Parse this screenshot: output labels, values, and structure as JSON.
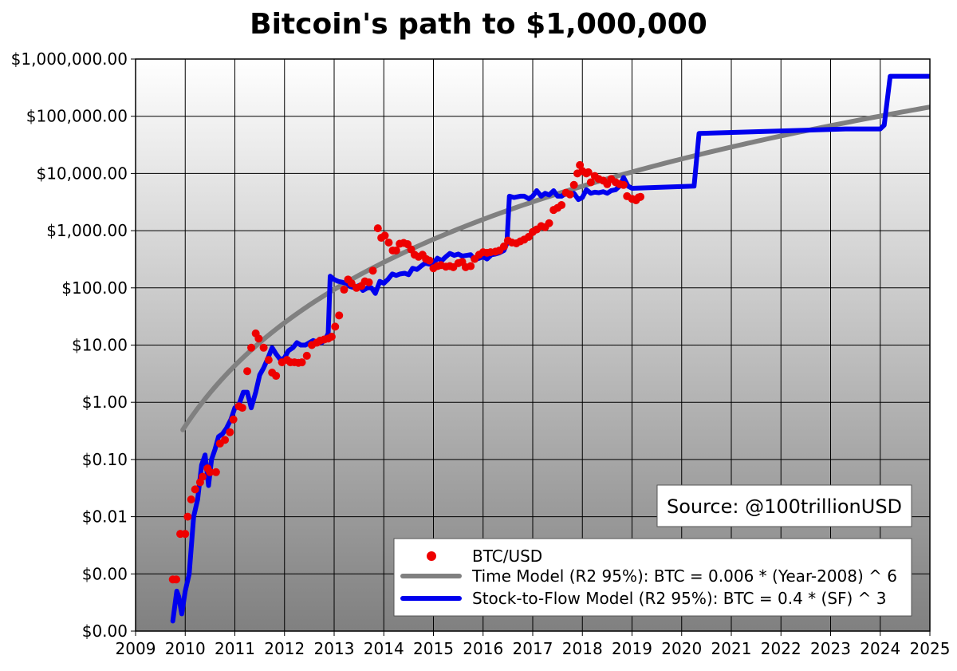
{
  "chart_data": {
    "type": "line",
    "title": "Bitcoin's path to $1,000,000",
    "xlabel": "",
    "ylabel": "",
    "x_scale": "linear",
    "y_scale": "log",
    "xlim": [
      2009,
      2025
    ],
    "ylim": [
      0.0001,
      1000000
    ],
    "grid": true,
    "legend_position": "bottom-right",
    "x_ticks": [
      2009,
      2010,
      2011,
      2012,
      2013,
      2014,
      2015,
      2016,
      2017,
      2018,
      2019,
      2020,
      2021,
      2022,
      2023,
      2024,
      2025
    ],
    "x_tick_labels": [
      "2009",
      "2010",
      "2011",
      "2012",
      "2013",
      "2014",
      "2015",
      "2016",
      "2017",
      "2018",
      "2019",
      "2020",
      "2021",
      "2022",
      "2023",
      "2024",
      "2025"
    ],
    "y_ticks": [
      0.0001,
      0.001,
      0.01,
      0.1,
      1,
      10,
      100,
      1000,
      10000,
      100000,
      1000000
    ],
    "y_tick_labels": [
      "$0.00",
      "$0.00",
      "$0.01",
      "$0.10",
      "$1.00",
      "$10.00",
      "$100.00",
      "$1,000.00",
      "$10,000.00",
      "$100,000.00",
      "$1,000,000.00"
    ],
    "annotation": "Source: @100trillionUSD",
    "series": [
      {
        "name": "BTC/USD",
        "kind": "scatter",
        "color": "#ee0000",
        "points": [
          [
            2009.75,
            0.0008
          ],
          [
            2009.82,
            0.0008
          ],
          [
            2009.9,
            0.005
          ],
          [
            2010.0,
            0.005
          ],
          [
            2010.05,
            0.01
          ],
          [
            2010.12,
            0.02
          ],
          [
            2010.2,
            0.03
          ],
          [
            2010.3,
            0.04
          ],
          [
            2010.35,
            0.05
          ],
          [
            2010.45,
            0.07
          ],
          [
            2010.5,
            0.06
          ],
          [
            2010.62,
            0.06
          ],
          [
            2010.7,
            0.19
          ],
          [
            2010.8,
            0.22
          ],
          [
            2010.9,
            0.3
          ],
          [
            2010.97,
            0.5
          ],
          [
            2011.08,
            0.85
          ],
          [
            2011.15,
            0.8
          ],
          [
            2011.25,
            3.5
          ],
          [
            2011.33,
            9
          ],
          [
            2011.42,
            16
          ],
          [
            2011.48,
            13
          ],
          [
            2011.58,
            9
          ],
          [
            2011.68,
            5.5
          ],
          [
            2011.75,
            3.3
          ],
          [
            2011.83,
            2.9
          ],
          [
            2011.95,
            5
          ],
          [
            2012.05,
            5.5
          ],
          [
            2012.12,
            5
          ],
          [
            2012.2,
            5
          ],
          [
            2012.28,
            4.9
          ],
          [
            2012.35,
            5
          ],
          [
            2012.45,
            6.5
          ],
          [
            2012.55,
            10
          ],
          [
            2012.65,
            11
          ],
          [
            2012.72,
            12
          ],
          [
            2012.8,
            12.5
          ],
          [
            2012.88,
            13
          ],
          [
            2012.95,
            14
          ],
          [
            2013.02,
            21
          ],
          [
            2013.1,
            33
          ],
          [
            2013.2,
            93
          ],
          [
            2013.28,
            140
          ],
          [
            2013.35,
            120
          ],
          [
            2013.45,
            100
          ],
          [
            2013.55,
            108
          ],
          [
            2013.62,
            130
          ],
          [
            2013.7,
            125
          ],
          [
            2013.78,
            200
          ],
          [
            2013.88,
            1100
          ],
          [
            2013.95,
            750
          ],
          [
            2014.02,
            820
          ],
          [
            2014.1,
            620
          ],
          [
            2014.18,
            450
          ],
          [
            2014.25,
            450
          ],
          [
            2014.32,
            590
          ],
          [
            2014.4,
            610
          ],
          [
            2014.48,
            580
          ],
          [
            2014.55,
            470
          ],
          [
            2014.62,
            380
          ],
          [
            2014.7,
            350
          ],
          [
            2014.78,
            380
          ],
          [
            2014.85,
            320
          ],
          [
            2014.92,
            300
          ],
          [
            2015.0,
            220
          ],
          [
            2015.08,
            240
          ],
          [
            2015.15,
            250
          ],
          [
            2015.25,
            235
          ],
          [
            2015.33,
            240
          ],
          [
            2015.4,
            230
          ],
          [
            2015.5,
            270
          ],
          [
            2015.58,
            285
          ],
          [
            2015.65,
            230
          ],
          [
            2015.75,
            240
          ],
          [
            2015.83,
            320
          ],
          [
            2015.92,
            380
          ],
          [
            2016.0,
            420
          ],
          [
            2016.08,
            410
          ],
          [
            2016.15,
            420
          ],
          [
            2016.25,
            430
          ],
          [
            2016.33,
            450
          ],
          [
            2016.42,
            530
          ],
          [
            2016.5,
            670
          ],
          [
            2016.58,
            620
          ],
          [
            2016.67,
            600
          ],
          [
            2016.75,
            650
          ],
          [
            2016.83,
            700
          ],
          [
            2016.92,
            780
          ],
          [
            2017.0,
            950
          ],
          [
            2017.08,
            1050
          ],
          [
            2017.17,
            1200
          ],
          [
            2017.25,
            1150
          ],
          [
            2017.33,
            1350
          ],
          [
            2017.42,
            2300
          ],
          [
            2017.5,
            2500
          ],
          [
            2017.58,
            2800
          ],
          [
            2017.67,
            4600
          ],
          [
            2017.75,
            4300
          ],
          [
            2017.83,
            6300
          ],
          [
            2017.9,
            10000
          ],
          [
            2017.95,
            14000
          ],
          [
            2018.0,
            11000
          ],
          [
            2018.08,
            10000
          ],
          [
            2018.12,
            10500
          ],
          [
            2018.17,
            7000
          ],
          [
            2018.25,
            9000
          ],
          [
            2018.33,
            8000
          ],
          [
            2018.42,
            7500
          ],
          [
            2018.5,
            6500
          ],
          [
            2018.58,
            8000
          ],
          [
            2018.67,
            7000
          ],
          [
            2018.75,
            6500
          ],
          [
            2018.83,
            6300
          ],
          [
            2018.9,
            4000
          ],
          [
            2019.0,
            3600
          ],
          [
            2019.08,
            3400
          ],
          [
            2019.13,
            3800
          ],
          [
            2019.17,
            3900
          ]
        ]
      },
      {
        "name": "Time Model (R2 95%): BTC = 0.006 * (Year-2008) ^ 6",
        "kind": "line",
        "color": "#808080"
      },
      {
        "name": "Stock-to-Flow Model (R2 95%): BTC = 0.4 * (SF) ^ 3",
        "kind": "line",
        "color": "#0000ee",
        "points": [
          [
            2009.75,
            0.00015
          ],
          [
            2009.83,
            0.0005
          ],
          [
            2009.87,
            0.0004
          ],
          [
            2009.93,
            0.0002
          ],
          [
            2010.0,
            0.0005
          ],
          [
            2010.08,
            0.001
          ],
          [
            2010.17,
            0.01
          ],
          [
            2010.25,
            0.02
          ],
          [
            2010.33,
            0.08
          ],
          [
            2010.4,
            0.12
          ],
          [
            2010.47,
            0.035
          ],
          [
            2010.53,
            0.1
          ],
          [
            2010.6,
            0.15
          ],
          [
            2010.67,
            0.25
          ],
          [
            2010.75,
            0.28
          ],
          [
            2010.83,
            0.35
          ],
          [
            2010.92,
            0.5
          ],
          [
            2011.0,
            0.8
          ],
          [
            2011.08,
            0.9
          ],
          [
            2011.17,
            1.5
          ],
          [
            2011.25,
            1.5
          ],
          [
            2011.33,
            0.8
          ],
          [
            2011.42,
            1.5
          ],
          [
            2011.5,
            3
          ],
          [
            2011.58,
            4
          ],
          [
            2011.67,
            6
          ],
          [
            2011.75,
            9
          ],
          [
            2011.83,
            7
          ],
          [
            2011.92,
            5.5
          ],
          [
            2012.0,
            6
          ],
          [
            2012.08,
            8
          ],
          [
            2012.17,
            9
          ],
          [
            2012.25,
            11
          ],
          [
            2012.33,
            10
          ],
          [
            2012.42,
            10
          ],
          [
            2012.5,
            11
          ],
          [
            2012.58,
            12
          ],
          [
            2012.67,
            11
          ],
          [
            2012.75,
            11
          ],
          [
            2012.83,
            13
          ],
          [
            2012.88,
            16
          ],
          [
            2012.92,
            160
          ],
          [
            2013.0,
            140
          ],
          [
            2013.08,
            130
          ],
          [
            2013.17,
            125
          ],
          [
            2013.25,
            120
          ],
          [
            2013.33,
            105
          ],
          [
            2013.42,
            100
          ],
          [
            2013.5,
            110
          ],
          [
            2013.58,
            90
          ],
          [
            2013.67,
            100
          ],
          [
            2013.75,
            100
          ],
          [
            2013.83,
            80
          ],
          [
            2013.92,
            130
          ],
          [
            2014.0,
            120
          ],
          [
            2014.08,
            140
          ],
          [
            2014.17,
            175
          ],
          [
            2014.25,
            165
          ],
          [
            2014.33,
            175
          ],
          [
            2014.42,
            180
          ],
          [
            2014.5,
            170
          ],
          [
            2014.58,
            220
          ],
          [
            2014.67,
            210
          ],
          [
            2014.75,
            240
          ],
          [
            2014.83,
            270
          ],
          [
            2014.92,
            260
          ],
          [
            2015.0,
            270
          ],
          [
            2015.08,
            330
          ],
          [
            2015.17,
            300
          ],
          [
            2015.25,
            350
          ],
          [
            2015.33,
            400
          ],
          [
            2015.42,
            370
          ],
          [
            2015.5,
            390
          ],
          [
            2015.58,
            360
          ],
          [
            2015.67,
            370
          ],
          [
            2015.75,
            380
          ],
          [
            2015.83,
            310
          ],
          [
            2015.92,
            330
          ],
          [
            2016.0,
            350
          ],
          [
            2016.08,
            320
          ],
          [
            2016.17,
            380
          ],
          [
            2016.25,
            390
          ],
          [
            2016.33,
            410
          ],
          [
            2016.42,
            450
          ],
          [
            2016.48,
            600
          ],
          [
            2016.53,
            4000
          ],
          [
            2016.62,
            3800
          ],
          [
            2016.75,
            4000
          ],
          [
            2016.83,
            4000
          ],
          [
            2016.92,
            3600
          ],
          [
            2017.0,
            4000
          ],
          [
            2017.08,
            5000
          ],
          [
            2017.17,
            4000
          ],
          [
            2017.25,
            4500
          ],
          [
            2017.33,
            4200
          ],
          [
            2017.42,
            5000
          ],
          [
            2017.5,
            4000
          ],
          [
            2017.58,
            4000
          ],
          [
            2017.67,
            4500
          ],
          [
            2017.75,
            4300
          ],
          [
            2017.83,
            4500
          ],
          [
            2017.92,
            3500
          ],
          [
            2018.0,
            3800
          ],
          [
            2018.08,
            5200
          ],
          [
            2018.17,
            4500
          ],
          [
            2018.25,
            4700
          ],
          [
            2018.33,
            4600
          ],
          [
            2018.42,
            4800
          ],
          [
            2018.5,
            4500
          ],
          [
            2018.58,
            5000
          ],
          [
            2018.67,
            5200
          ],
          [
            2018.75,
            6000
          ],
          [
            2018.83,
            8500
          ],
          [
            2018.92,
            6000
          ],
          [
            2019.0,
            5500
          ],
          [
            2020.25,
            6000
          ],
          [
            2020.35,
            50000
          ],
          [
            2023.3,
            60000
          ],
          [
            2024.0,
            60000
          ],
          [
            2024.08,
            70000
          ],
          [
            2024.2,
            500000
          ],
          [
            2025.0,
            500000
          ]
        ]
      }
    ]
  }
}
